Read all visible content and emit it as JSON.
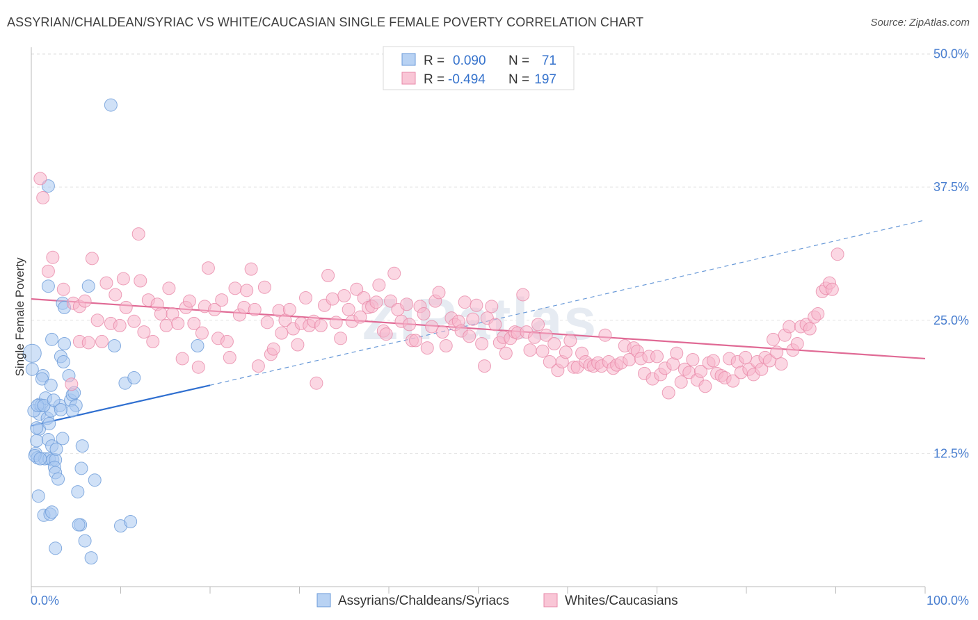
{
  "title": "ASSYRIAN/CHALDEAN/SYRIAC VS WHITE/CAUCASIAN SINGLE FEMALE POVERTY CORRELATION CHART",
  "source": "Source: ZipAtlas.com",
  "watermark": "ZIPatlas",
  "chart_data": {
    "type": "scatter",
    "title": "ASSYRIAN/CHALDEAN/SYRIAC VS WHITE/CAUCASIAN SINGLE FEMALE POVERTY CORRELATION CHART",
    "ylabel": "Single Female Poverty",
    "xlabel": "",
    "xlim": [
      0,
      100
    ],
    "ylim": [
      0,
      52
    ],
    "x_tick_labels": [
      "0.0%",
      "100.0%"
    ],
    "y_ticks": [
      12.5,
      25.0,
      37.5,
      50.0
    ],
    "y_tick_labels": [
      "12.5%",
      "25.0%",
      "37.5%",
      "50.0%"
    ],
    "legend": [
      {
        "r_label": "R =",
        "r_value": "0.090",
        "n_label": "N =",
        "n_value": "71"
      },
      {
        "r_label": "R =",
        "r_value": "-0.494",
        "n_label": "N =",
        "n_value": "197"
      }
    ],
    "series": [
      {
        "name": "Assyrians/Chaldeans/Syriacs",
        "color": "#a9c8f0",
        "stroke": "#6a9ad8",
        "trend": {
          "x0": 0,
          "y0": 15.1,
          "x1": 20,
          "y1": 18.9,
          "dash_to_x": 100,
          "dash_to_y": 34.4
        },
        "trend_color": "#2f6fd0",
        "points": [
          [
            8.9,
            45.2
          ],
          [
            1.9,
            37.6
          ],
          [
            0.1,
            21.9
          ],
          [
            0.1,
            20.4
          ],
          [
            0.9,
            17.1
          ],
          [
            0.9,
            16.2
          ],
          [
            0.9,
            14.8
          ],
          [
            0.6,
            13.7
          ],
          [
            0.5,
            12.5
          ],
          [
            0.7,
            12.1
          ],
          [
            0.3,
            16.5
          ],
          [
            1.1,
            17.0
          ],
          [
            1.3,
            19.8
          ],
          [
            1.2,
            19.5
          ],
          [
            1.6,
            17.7
          ],
          [
            1.8,
            15.8
          ],
          [
            2.0,
            15.3
          ],
          [
            2.2,
            16.5
          ],
          [
            1.5,
            12.0
          ],
          [
            2.0,
            12.0
          ],
          [
            2.4,
            11.9
          ],
          [
            2.7,
            11.9
          ],
          [
            1.9,
            13.8
          ],
          [
            2.3,
            13.2
          ],
          [
            2.8,
            12.9
          ],
          [
            1.9,
            28.2
          ],
          [
            2.3,
            23.2
          ],
          [
            2.2,
            18.9
          ],
          [
            3.2,
            17.0
          ],
          [
            3.3,
            21.6
          ],
          [
            3.6,
            21.1
          ],
          [
            3.7,
            22.8
          ],
          [
            3.5,
            26.6
          ],
          [
            3.7,
            26.2
          ],
          [
            4.2,
            19.8
          ],
          [
            4.4,
            17.5
          ],
          [
            4.6,
            18.0
          ],
          [
            4.8,
            18.2
          ],
          [
            5.0,
            17.0
          ],
          [
            4.6,
            16.5
          ],
          [
            6.4,
            28.2
          ],
          [
            9.3,
            22.6
          ],
          [
            10.5,
            19.1
          ],
          [
            11.5,
            19.6
          ],
          [
            18.6,
            22.6
          ],
          [
            3.5,
            13.9
          ],
          [
            5.7,
            13.2
          ],
          [
            2.6,
            11.2
          ],
          [
            2.7,
            10.7
          ],
          [
            3.0,
            10.1
          ],
          [
            5.6,
            11.1
          ],
          [
            7.1,
            10.0
          ],
          [
            5.2,
            8.9
          ],
          [
            0.8,
            8.5
          ],
          [
            1.4,
            6.7
          ],
          [
            2.1,
            6.8
          ],
          [
            2.3,
            7.0
          ],
          [
            5.5,
            5.8
          ],
          [
            5.3,
            5.8
          ],
          [
            10.0,
            5.7
          ],
          [
            11.1,
            6.1
          ],
          [
            6.0,
            4.3
          ],
          [
            2.7,
            3.6
          ],
          [
            6.7,
            2.7
          ],
          [
            0.4,
            12.3
          ],
          [
            1.0,
            12.0
          ],
          [
            0.6,
            14.9
          ],
          [
            0.7,
            17.0
          ],
          [
            1.4,
            17.0
          ],
          [
            2.5,
            17.5
          ],
          [
            3.3,
            16.6
          ]
        ]
      },
      {
        "name": "Whites/Caucasians",
        "color": "#f7b6cc",
        "stroke": "#e889a9",
        "trend": {
          "x0": 0,
          "y0": 27.0,
          "x1": 100,
          "y1": 21.4
        },
        "trend_color": "#e06a95",
        "points": [
          [
            1.0,
            38.3
          ],
          [
            1.3,
            36.5
          ],
          [
            1.9,
            29.6
          ],
          [
            2.4,
            30.9
          ],
          [
            3.6,
            27.9
          ],
          [
            4.5,
            19.0
          ],
          [
            4.7,
            26.6
          ],
          [
            5.4,
            26.3
          ],
          [
            5.4,
            23.0
          ],
          [
            6.0,
            26.8
          ],
          [
            6.4,
            22.9
          ],
          [
            6.8,
            30.8
          ],
          [
            7.4,
            25.0
          ],
          [
            7.9,
            23.0
          ],
          [
            8.4,
            28.5
          ],
          [
            8.9,
            24.7
          ],
          [
            9.4,
            27.4
          ],
          [
            9.9,
            24.5
          ],
          [
            10.3,
            28.9
          ],
          [
            10.6,
            26.2
          ],
          [
            11.5,
            24.9
          ],
          [
            12.0,
            33.1
          ],
          [
            12.2,
            28.7
          ],
          [
            12.6,
            23.9
          ],
          [
            13.1,
            26.9
          ],
          [
            13.6,
            23.0
          ],
          [
            14.1,
            26.5
          ],
          [
            14.5,
            25.6
          ],
          [
            15.1,
            24.5
          ],
          [
            15.4,
            28.0
          ],
          [
            15.8,
            25.6
          ],
          [
            16.4,
            24.7
          ],
          [
            16.9,
            21.4
          ],
          [
            17.3,
            26.2
          ],
          [
            17.7,
            26.8
          ],
          [
            18.2,
            24.7
          ],
          [
            18.7,
            20.6
          ],
          [
            19.1,
            23.8
          ],
          [
            19.4,
            26.3
          ],
          [
            19.8,
            29.9
          ],
          [
            20.5,
            26.0
          ],
          [
            20.9,
            23.3
          ],
          [
            21.3,
            26.9
          ],
          [
            21.9,
            23.0
          ],
          [
            22.2,
            21.5
          ],
          [
            22.8,
            28.0
          ],
          [
            23.3,
            25.5
          ],
          [
            23.8,
            26.2
          ],
          [
            24.1,
            27.8
          ],
          [
            24.6,
            29.8
          ],
          [
            25.0,
            26.0
          ],
          [
            25.4,
            20.7
          ],
          [
            26.1,
            28.1
          ],
          [
            26.4,
            24.8
          ],
          [
            26.8,
            21.8
          ],
          [
            27.1,
            22.3
          ],
          [
            27.7,
            25.9
          ],
          [
            28.0,
            23.8
          ],
          [
            28.4,
            25.0
          ],
          [
            28.9,
            26.0
          ],
          [
            29.3,
            24.2
          ],
          [
            29.8,
            22.7
          ],
          [
            30.2,
            24.7
          ],
          [
            30.7,
            27.1
          ],
          [
            31.1,
            24.5
          ],
          [
            31.6,
            24.9
          ],
          [
            31.9,
            19.1
          ],
          [
            32.4,
            24.5
          ],
          [
            32.8,
            26.4
          ],
          [
            33.2,
            29.2
          ],
          [
            33.7,
            27.0
          ],
          [
            34.1,
            24.8
          ],
          [
            34.6,
            23.3
          ],
          [
            35.0,
            27.3
          ],
          [
            35.5,
            26.0
          ],
          [
            35.9,
            24.9
          ],
          [
            36.4,
            27.9
          ],
          [
            36.8,
            25.3
          ],
          [
            37.2,
            27.1
          ],
          [
            37.7,
            26.2
          ],
          [
            38.1,
            26.3
          ],
          [
            38.6,
            26.7
          ],
          [
            38.9,
            28.3
          ],
          [
            39.4,
            24.0
          ],
          [
            39.7,
            23.7
          ],
          [
            40.2,
            26.8
          ],
          [
            40.6,
            29.4
          ],
          [
            41.0,
            26.0
          ],
          [
            41.4,
            24.9
          ],
          [
            42.0,
            26.5
          ],
          [
            42.3,
            24.6
          ],
          [
            42.6,
            23.1
          ],
          [
            43.0,
            23.1
          ],
          [
            43.5,
            26.3
          ],
          [
            43.9,
            25.6
          ],
          [
            44.3,
            22.4
          ],
          [
            44.8,
            24.4
          ],
          [
            45.2,
            26.8
          ],
          [
            45.6,
            27.6
          ],
          [
            46.0,
            23.9
          ],
          [
            46.4,
            22.6
          ],
          [
            47.0,
            25.2
          ],
          [
            47.4,
            24.6
          ],
          [
            47.8,
            24.9
          ],
          [
            48.1,
            24.0
          ],
          [
            48.5,
            26.7
          ],
          [
            49.0,
            23.5
          ],
          [
            49.4,
            25.1
          ],
          [
            49.8,
            26.4
          ],
          [
            50.4,
            22.8
          ],
          [
            50.7,
            20.7
          ],
          [
            51.0,
            25.2
          ],
          [
            51.5,
            26.3
          ],
          [
            51.9,
            24.6
          ],
          [
            52.4,
            22.9
          ],
          [
            52.8,
            23.4
          ],
          [
            53.1,
            21.9
          ],
          [
            53.6,
            23.3
          ],
          [
            54.1,
            23.9
          ],
          [
            54.4,
            23.8
          ],
          [
            55.0,
            27.4
          ],
          [
            55.4,
            23.9
          ],
          [
            55.8,
            22.2
          ],
          [
            56.3,
            23.4
          ],
          [
            56.7,
            24.6
          ],
          [
            57.2,
            22.1
          ],
          [
            57.6,
            23.6
          ],
          [
            58.0,
            21.1
          ],
          [
            58.5,
            22.8
          ],
          [
            58.9,
            20.3
          ],
          [
            59.4,
            21.1
          ],
          [
            59.8,
            22.0
          ],
          [
            60.3,
            23.1
          ],
          [
            60.7,
            20.6
          ],
          [
            61.1,
            20.6
          ],
          [
            61.6,
            21.9
          ],
          [
            62.0,
            21.1
          ],
          [
            62.5,
            20.8
          ],
          [
            62.9,
            20.7
          ],
          [
            63.4,
            21.0
          ],
          [
            63.8,
            20.7
          ],
          [
            64.2,
            23.6
          ],
          [
            64.6,
            21.1
          ],
          [
            65.1,
            20.5
          ],
          [
            65.5,
            20.8
          ],
          [
            66.0,
            21.0
          ],
          [
            66.4,
            22.6
          ],
          [
            66.9,
            21.3
          ],
          [
            67.4,
            22.4
          ],
          [
            67.8,
            22.1
          ],
          [
            68.2,
            21.4
          ],
          [
            68.6,
            20.0
          ],
          [
            69.1,
            21.6
          ],
          [
            69.5,
            19.5
          ],
          [
            70.0,
            21.6
          ],
          [
            70.4,
            19.9
          ],
          [
            70.9,
            20.5
          ],
          [
            71.3,
            18.2
          ],
          [
            71.8,
            20.9
          ],
          [
            72.2,
            21.9
          ],
          [
            72.7,
            19.2
          ],
          [
            73.1,
            20.4
          ],
          [
            73.6,
            20.1
          ],
          [
            74.0,
            21.3
          ],
          [
            74.5,
            19.4
          ],
          [
            74.9,
            20.2
          ],
          [
            75.4,
            18.8
          ],
          [
            75.8,
            21.0
          ],
          [
            76.3,
            21.2
          ],
          [
            76.7,
            20.0
          ],
          [
            77.2,
            19.8
          ],
          [
            77.6,
            19.6
          ],
          [
            78.1,
            21.4
          ],
          [
            78.5,
            19.3
          ],
          [
            79.0,
            21.1
          ],
          [
            79.4,
            20.1
          ],
          [
            79.9,
            21.5
          ],
          [
            80.3,
            20.4
          ],
          [
            80.8,
            19.9
          ],
          [
            81.2,
            21.1
          ],
          [
            81.7,
            20.4
          ],
          [
            82.1,
            21.5
          ],
          [
            82.6,
            21.2
          ],
          [
            83.0,
            23.2
          ],
          [
            83.4,
            22.0
          ],
          [
            83.9,
            20.9
          ],
          [
            84.3,
            23.6
          ],
          [
            84.8,
            24.4
          ],
          [
            85.2,
            22.2
          ],
          [
            85.7,
            22.8
          ],
          [
            86.1,
            24.4
          ],
          [
            86.7,
            24.6
          ],
          [
            87.1,
            24.2
          ],
          [
            87.6,
            25.3
          ],
          [
            88.0,
            25.6
          ],
          [
            88.5,
            27.7
          ],
          [
            88.9,
            28.0
          ],
          [
            89.3,
            28.5
          ],
          [
            89.6,
            27.9
          ],
          [
            90.2,
            31.2
          ]
        ]
      }
    ]
  },
  "bottom_legend": [
    {
      "label": "Assyrians/Chaldeans/Syriacs"
    },
    {
      "label": "Whites/Caucasians"
    }
  ]
}
